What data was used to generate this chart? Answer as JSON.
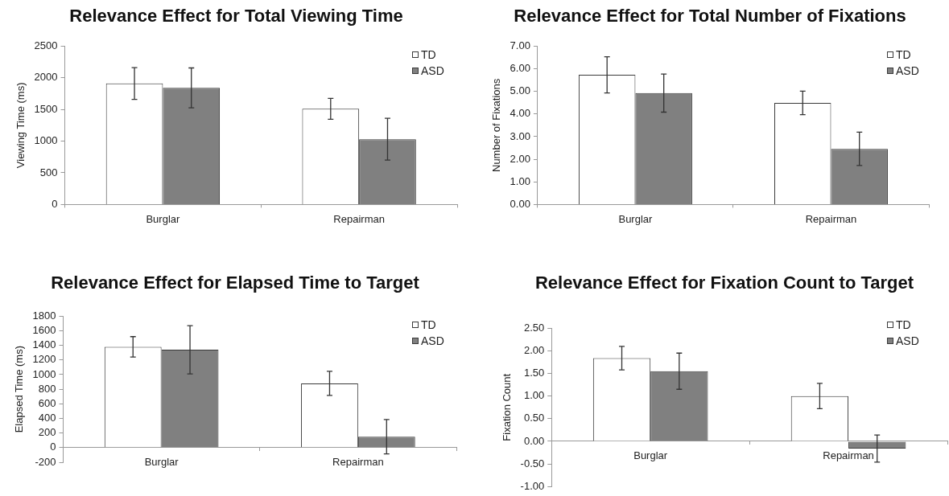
{
  "chart_data": [
    {
      "type": "bar",
      "title": "Relevance Effect for Total Viewing Time",
      "ylabel": "Viewing Time (ms)",
      "categories": [
        "Burglar",
        "Repairman"
      ],
      "series": [
        {
          "name": "TD",
          "color": "#ffffff",
          "values": [
            1910,
            1510
          ],
          "errors": [
            250,
            165
          ]
        },
        {
          "name": "ASD",
          "color": "#808080",
          "values": [
            1840,
            1030
          ],
          "errors": [
            315,
            330
          ]
        }
      ],
      "ylim": [
        0,
        2500
      ],
      "yticks": [
        0,
        500,
        1000,
        1500,
        2000,
        2500
      ],
      "legend": "top right"
    },
    {
      "type": "bar",
      "title": "Relevance Effect for Total Number of Fixations",
      "ylabel": "Number of Fixations",
      "categories": [
        "Burglar",
        "Repairman"
      ],
      "series": [
        {
          "name": "TD",
          "color": "#ffffff",
          "values": [
            5.73,
            4.49
          ],
          "errors": [
            0.8,
            0.52
          ]
        },
        {
          "name": "ASD",
          "color": "#808080",
          "values": [
            4.92,
            2.46
          ],
          "errors": [
            0.84,
            0.74
          ]
        }
      ],
      "ylim": [
        0,
        7
      ],
      "yticks": [
        {
          "value": 0,
          "label": "0.00"
        },
        {
          "value": 1,
          "label": "1.00"
        },
        {
          "value": 2,
          "label": "2.00"
        },
        {
          "value": 3,
          "label": "3.00"
        },
        {
          "value": 4,
          "label": "4.00"
        },
        {
          "value": 5,
          "label": "5.00"
        },
        {
          "value": 6,
          "label": "6.00"
        },
        {
          "value": 7,
          "label": "7.00"
        }
      ],
      "legend": "top right"
    },
    {
      "type": "bar",
      "title": "Relevance Effect for Elapsed Time to Target",
      "ylabel": "Elapsed Time (ms)",
      "categories": [
        "Burglar",
        "Repairman"
      ],
      "series": [
        {
          "name": "TD",
          "color": "#ffffff",
          "values": [
            1380,
            880
          ],
          "errors": [
            140,
            165
          ]
        },
        {
          "name": "ASD",
          "color": "#808080",
          "values": [
            1340,
            150
          ],
          "errors": [
            330,
            235
          ]
        }
      ],
      "ylim": [
        -200,
        1800
      ],
      "yticks": [
        -200,
        0,
        200,
        400,
        600,
        800,
        1000,
        1200,
        1400,
        1600,
        1800
      ],
      "legend": "top right"
    },
    {
      "type": "bar",
      "title": "Relevance Effect for Fixation Count to Target",
      "ylabel": "Fixation Count",
      "categories": [
        "Burglar",
        "Repairman"
      ],
      "series": [
        {
          "name": "TD",
          "color": "#ffffff",
          "values": [
            1.84,
            1.0
          ],
          "errors": [
            0.26,
            0.28
          ]
        },
        {
          "name": "ASD",
          "color": "#808080",
          "values": [
            1.55,
            -0.16
          ],
          "errors": [
            0.4,
            0.3
          ]
        }
      ],
      "ylim": [
        -1,
        2.5
      ],
      "yticks": [
        {
          "value": -1,
          "label": "-1.00"
        },
        {
          "value": -0.5,
          "label": "-0.50"
        },
        {
          "value": 0,
          "label": "0.00"
        },
        {
          "value": 0.5,
          "label": "0.50"
        },
        {
          "value": 1,
          "label": "1.00"
        },
        {
          "value": 1.5,
          "label": "1.50"
        },
        {
          "value": 2,
          "label": "2.00"
        },
        {
          "value": 2.5,
          "label": "2.50"
        }
      ],
      "legend": "top right"
    }
  ]
}
